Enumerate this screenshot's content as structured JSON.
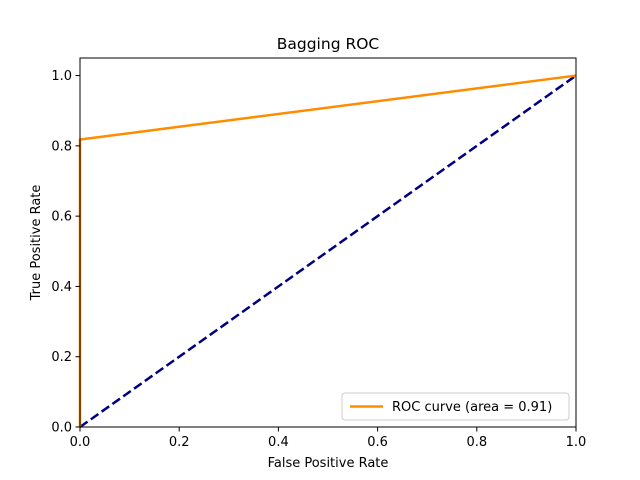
{
  "chart_data": {
    "type": "line",
    "title": "Bagging ROC",
    "xlabel": "False Positive Rate",
    "ylabel": "True Positive Rate",
    "xlim": [
      0.0,
      1.0
    ],
    "ylim": [
      0.0,
      1.05
    ],
    "x_ticks": [
      0.0,
      0.2,
      0.4,
      0.6,
      0.8,
      1.0
    ],
    "x_tick_labels": [
      "0.0",
      "0.2",
      "0.4",
      "0.6",
      "0.8",
      "1.0"
    ],
    "y_ticks": [
      0.0,
      0.2,
      0.4,
      0.6,
      0.8,
      1.0
    ],
    "y_tick_labels": [
      "0.0",
      "0.2",
      "0.4",
      "0.6",
      "0.8",
      "1.0"
    ],
    "grid": false,
    "legend_position": "lower right",
    "series": [
      {
        "name": "ROC curve (area = 0.91)",
        "color": "#ff8c00",
        "line_style": "solid",
        "x": [
          0.0,
          0.0,
          1.0
        ],
        "y": [
          0.0,
          0.818,
          1.0
        ]
      },
      {
        "color": "#000080",
        "line_style": "dashed",
        "x": [
          0.0,
          1.0
        ],
        "y": [
          0.0,
          1.0
        ]
      }
    ]
  }
}
